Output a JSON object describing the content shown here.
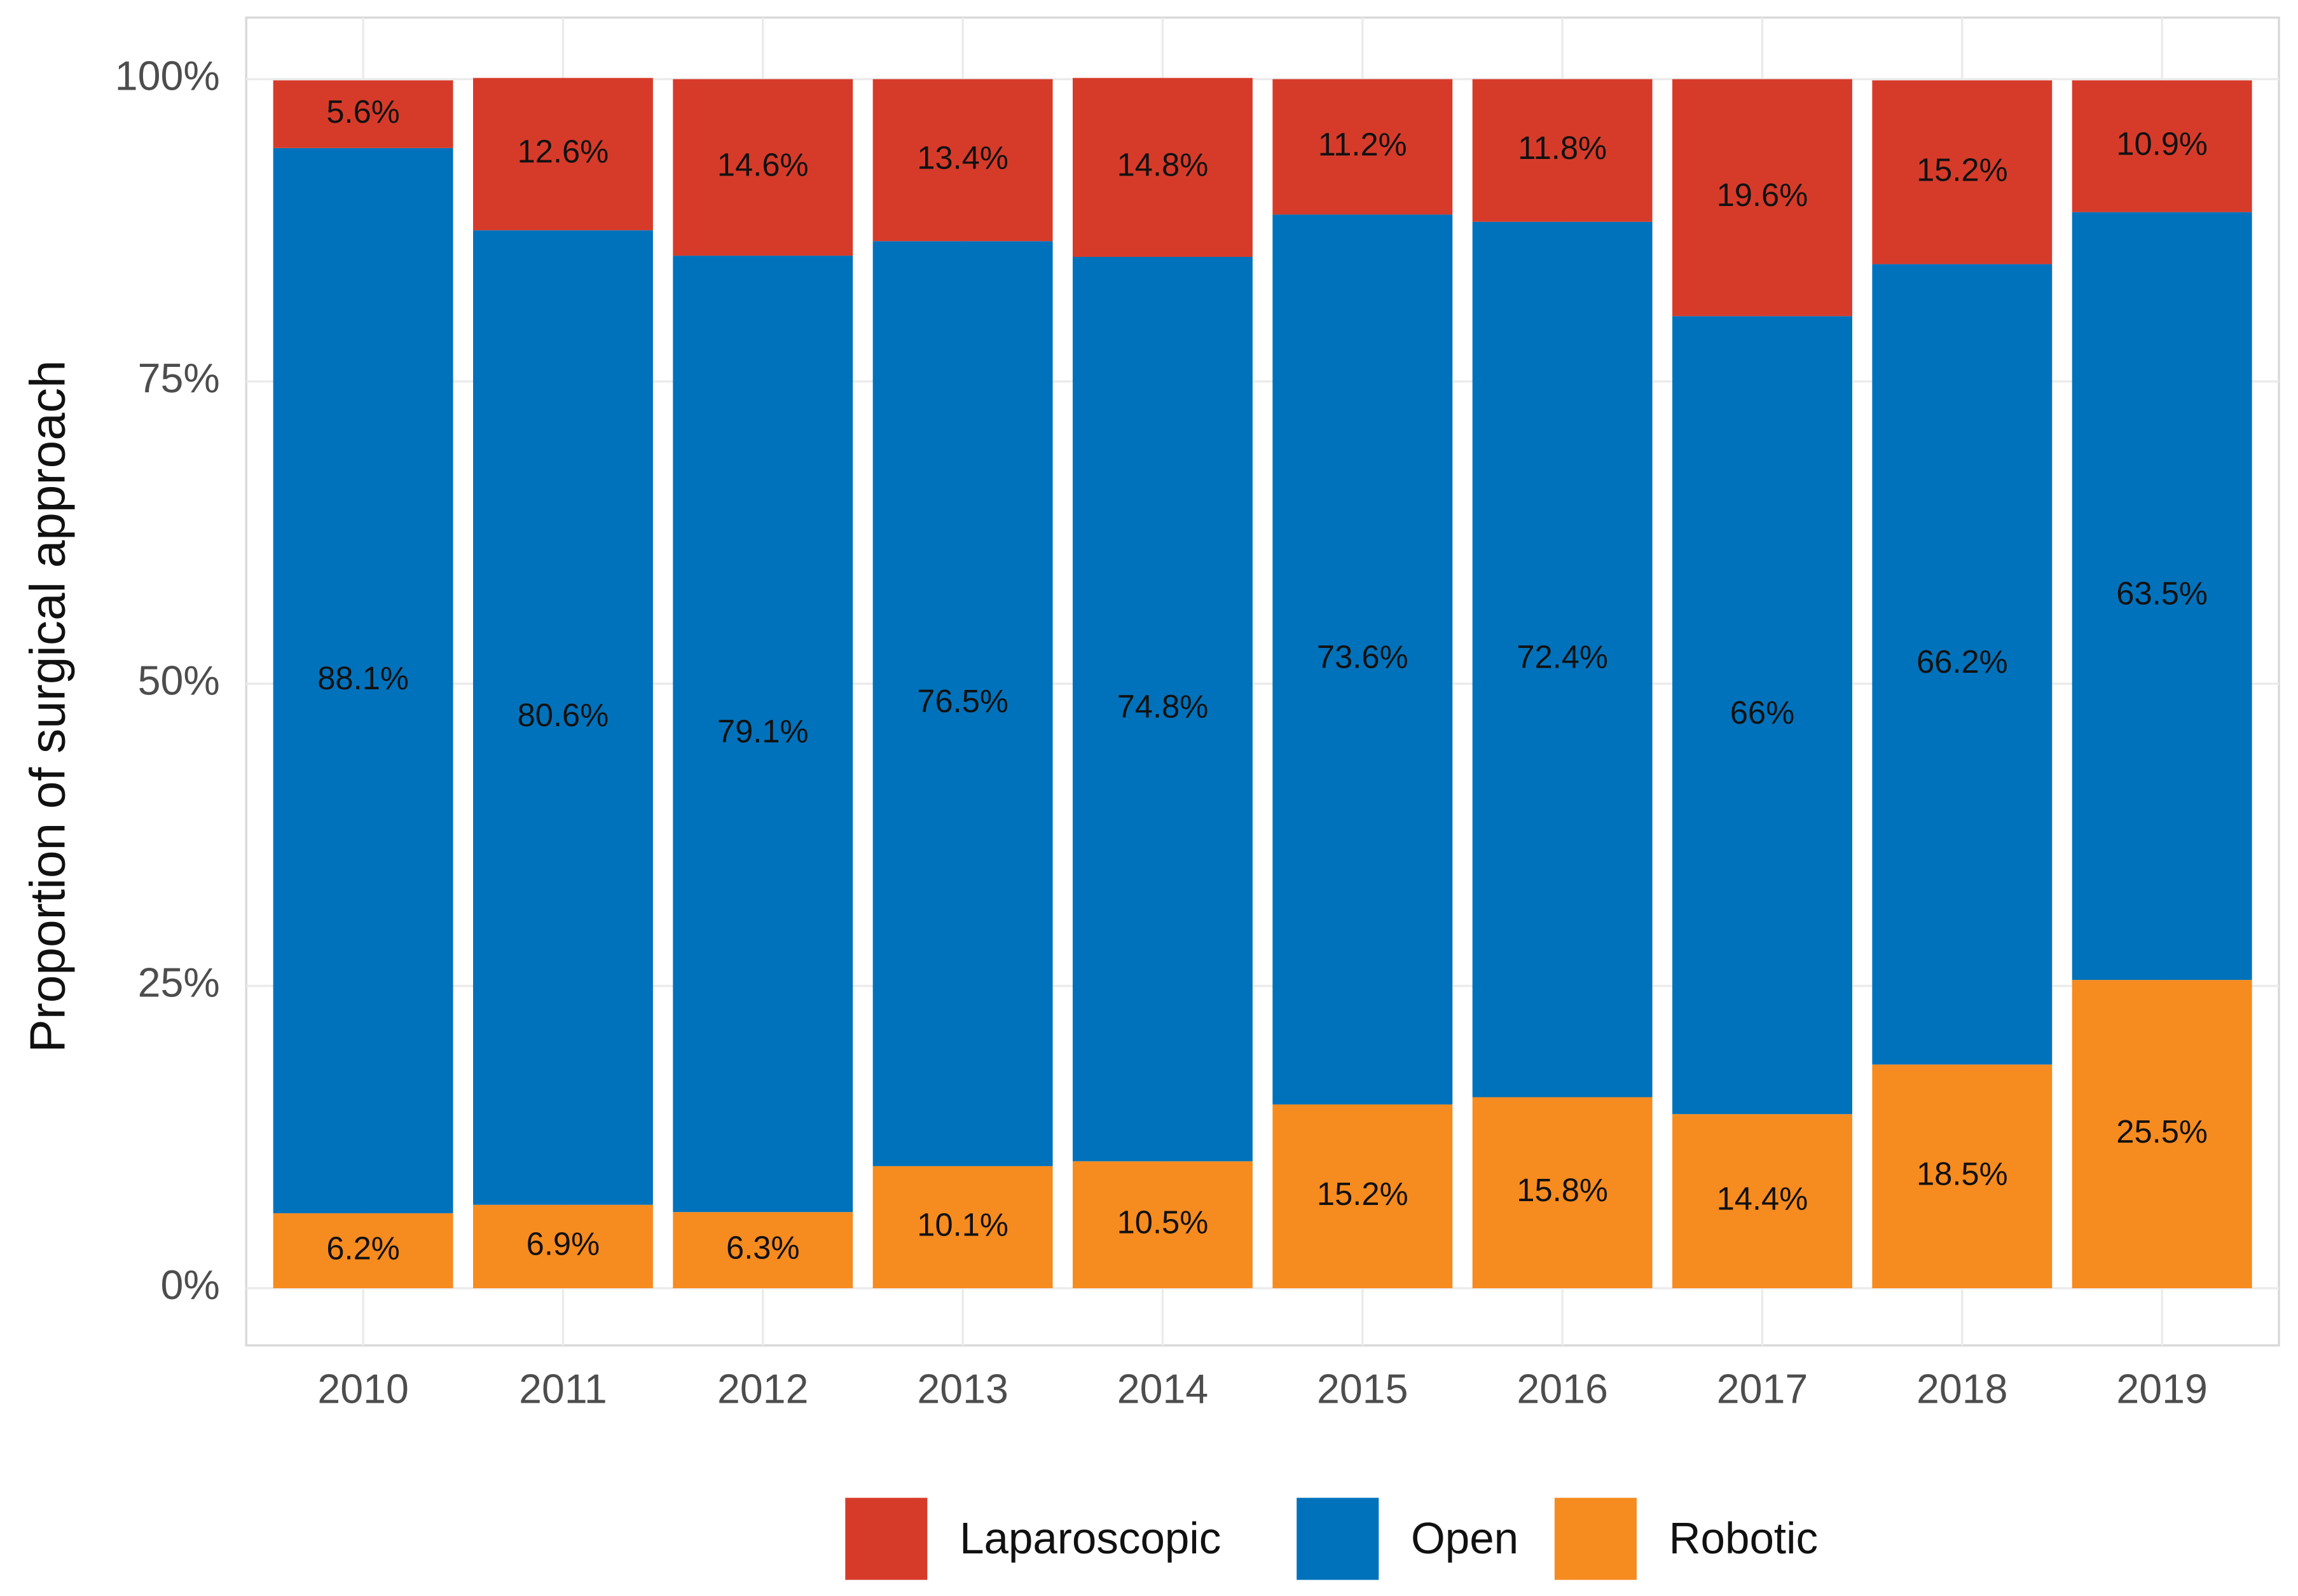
{
  "chart_data": {
    "type": "stacked-bar",
    "y_label": "Proportion of surgical approach",
    "categories": [
      "2010",
      "2011",
      "2012",
      "2013",
      "2014",
      "2015",
      "2016",
      "2017",
      "2018",
      "2019"
    ],
    "series": [
      {
        "name": "Laparoscopic",
        "color": "#d63b2a",
        "values": [
          5.6,
          12.6,
          14.6,
          13.4,
          14.8,
          11.2,
          11.8,
          19.6,
          15.2,
          10.9
        ],
        "value_labels": [
          "5.6%",
          "12.6%",
          "14.6%",
          "13.4%",
          "14.8%",
          "11.2%",
          "11.8%",
          "19.6%",
          "15.2%",
          "10.9%"
        ]
      },
      {
        "name": "Open",
        "color": "#0072bb",
        "values": [
          88.1,
          80.6,
          79.1,
          76.5,
          74.8,
          73.6,
          72.4,
          66,
          66.2,
          63.5
        ],
        "value_labels": [
          "88.1%",
          "80.6%",
          "79.1%",
          "76.5%",
          "74.8%",
          "73.6%",
          "72.4%",
          "66%",
          "66.2%",
          "63.5%"
        ]
      },
      {
        "name": "Robotic",
        "color": "#f68b1f",
        "values": [
          6.2,
          6.9,
          6.3,
          10.1,
          10.5,
          15.2,
          15.8,
          14.4,
          18.5,
          25.5
        ],
        "value_labels": [
          "6.2%",
          "6.9%",
          "6.3%",
          "10.1%",
          "10.5%",
          "15.2%",
          "15.8%",
          "14.4%",
          "18.5%",
          "25.5%"
        ]
      }
    ],
    "stack_order": "reverse",
    "ylim": [
      0,
      100
    ],
    "yticks": [
      {
        "value": 0,
        "label": "0%"
      },
      {
        "value": 25,
        "label": "25%"
      },
      {
        "value": 50,
        "label": "50%"
      },
      {
        "value": 75,
        "label": "75%"
      },
      {
        "value": 100,
        "label": "100%"
      }
    ],
    "grid": true,
    "legend": "bottom"
  }
}
